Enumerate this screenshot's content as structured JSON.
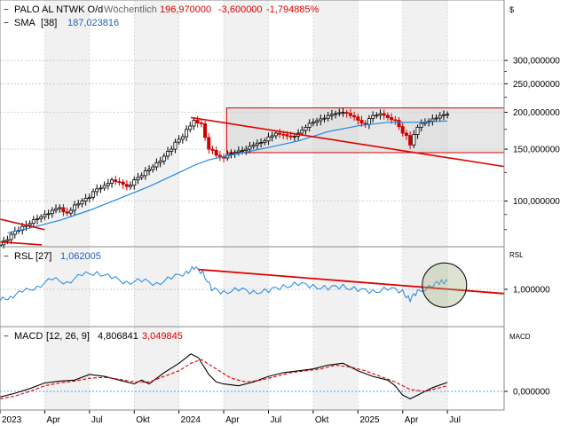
{
  "header": {
    "symbol": "PALO AL NTWK O/d",
    "interval": "Wöchentlich",
    "last": "196,970000",
    "change": "-3,600000",
    "change_pct": "-1,794885%",
    "currency_label": "$",
    "sma_label": "SMA",
    "sma_param": "[38]",
    "sma_value": "187,023816",
    "rsl_label": "RSL",
    "rsl_param": "[27]",
    "rsl_value": "1,062005",
    "rsl_axis_label": "RSL",
    "macd_label": "MACD",
    "macd_param": "[12, 26, 9]",
    "macd_value": "4,806841",
    "macd_signal_value": "3,049845",
    "macd_axis_label": "MACD"
  },
  "colors": {
    "up": "#000000",
    "down": "#d00000",
    "sma": "#1e88e5",
    "trendline": "#dd0000",
    "macd": "#000000",
    "signal": "#dd0000",
    "zero": "#1e88e5",
    "shade": "#d3d3d3",
    "stripe": "#f1f1f1",
    "header_red": "#dd0000",
    "header_blue": "#1e5fbf"
  },
  "chart_data": [
    {
      "type": "candlestick",
      "title": "PALO AL NTWK O/d",
      "y_scale": "log",
      "ylim": [
        70,
        380
      ],
      "y_ticks": [
        100,
        150,
        200,
        250,
        300
      ],
      "y_tick_labels": [
        "100,000000",
        "150,000000",
        "200,000000",
        "250,000000",
        "300,000000"
      ],
      "x_ticks": [
        "2023",
        "Apr",
        "Jul",
        "Okt",
        "2024",
        "Apr",
        "Jul",
        "Okt",
        "2025",
        "Apr",
        "Jul"
      ],
      "x_tick_months": [
        0,
        3,
        6,
        9,
        12,
        15,
        18,
        21,
        24,
        27,
        30
      ],
      "x_range_months": [
        0,
        33.8
      ],
      "last_close": 196.97,
      "closes": [
        [
          0,
          71
        ],
        [
          0.5,
          74
        ],
        [
          1,
          79
        ],
        [
          1.5,
          82
        ],
        [
          2,
          84
        ],
        [
          2.5,
          87
        ],
        [
          3,
          90
        ],
        [
          3.5,
          93
        ],
        [
          4,
          95
        ],
        [
          4.5,
          91
        ],
        [
          5,
          97
        ],
        [
          5.5,
          100
        ],
        [
          6,
          103
        ],
        [
          6.5,
          110
        ],
        [
          7,
          113
        ],
        [
          7.5,
          118
        ],
        [
          8,
          116
        ],
        [
          8.5,
          112
        ],
        [
          9,
          118
        ],
        [
          9.5,
          122
        ],
        [
          10,
          128
        ],
        [
          10.5,
          135
        ],
        [
          11,
          142
        ],
        [
          11.5,
          150
        ],
        [
          12,
          162
        ],
        [
          12.5,
          175
        ],
        [
          13,
          188
        ],
        [
          13.5,
          183
        ],
        [
          14,
          150
        ],
        [
          14.5,
          143
        ],
        [
          15,
          140
        ],
        [
          15.5,
          145
        ],
        [
          16,
          148
        ],
        [
          16.5,
          150
        ],
        [
          17,
          155
        ],
        [
          17.5,
          158
        ],
        [
          18,
          165
        ],
        [
          18.5,
          170
        ],
        [
          19,
          168
        ],
        [
          19.5,
          165
        ],
        [
          20,
          170
        ],
        [
          20.5,
          178
        ],
        [
          21,
          185
        ],
        [
          21.5,
          190
        ],
        [
          22,
          195
        ],
        [
          22.5,
          198
        ],
        [
          23,
          200
        ],
        [
          23.5,
          195
        ],
        [
          24,
          188
        ],
        [
          24.5,
          182
        ],
        [
          25,
          195
        ],
        [
          25.5,
          198
        ],
        [
          26,
          192
        ],
        [
          26.5,
          188
        ],
        [
          27,
          170
        ],
        [
          27.5,
          155
        ],
        [
          28,
          178
        ],
        [
          28.5,
          185
        ],
        [
          29,
          190
        ],
        [
          29.5,
          195
        ],
        [
          30,
          197
        ]
      ],
      "sma": [
        [
          0.5,
          78
        ],
        [
          2,
          81
        ],
        [
          4,
          86
        ],
        [
          6,
          93
        ],
        [
          8,
          102
        ],
        [
          10,
          112
        ],
        [
          12,
          125
        ],
        [
          13,
          132
        ],
        [
          14,
          138
        ],
        [
          16,
          145
        ],
        [
          18,
          152
        ],
        [
          20,
          160
        ],
        [
          22,
          172
        ],
        [
          24,
          180
        ],
        [
          26,
          185
        ],
        [
          28,
          185
        ],
        [
          30,
          187
        ]
      ],
      "sma_last": 187.023816,
      "trendlines": [
        {
          "from": [
            -0.5,
            88
          ],
          "to": [
            3,
            80
          ]
        },
        {
          "from": [
            -0.5,
            73
          ],
          "to": [
            2.8,
            71
          ]
        },
        {
          "from": [
            12.8,
            192
          ],
          "to": [
            33.8,
            131
          ]
        }
      ],
      "range_box": {
        "x_start": 15.2,
        "x_end": 33.8,
        "low": 146,
        "high": 207
      }
    },
    {
      "type": "line",
      "title": "RSL [27]",
      "ylim": [
        0.75,
        1.2
      ],
      "y_ticks": [
        1.0
      ],
      "y_tick_labels": [
        "1,000000"
      ],
      "series": [
        {
          "name": "RSL",
          "points": [
            [
              0,
              0.92
            ],
            [
              0.7,
              0.95
            ],
            [
              1.5,
              0.98
            ],
            [
              2.5,
              1.02
            ],
            [
              3.5,
              1.07
            ],
            [
              4.5,
              1.05
            ],
            [
              5.5,
              1.1
            ],
            [
              6.5,
              1.12
            ],
            [
              7.5,
              1.08
            ],
            [
              8.5,
              1.05
            ],
            [
              9.5,
              1.06
            ],
            [
              10.5,
              1.04
            ],
            [
              11.5,
              1.08
            ],
            [
              12.5,
              1.12
            ],
            [
              13,
              1.15
            ],
            [
              13.6,
              1.12
            ],
            [
              14.2,
              1.0
            ],
            [
              15,
              0.98
            ],
            [
              16,
              1.0
            ],
            [
              17,
              0.98
            ],
            [
              18,
              0.99
            ],
            [
              19,
              1.02
            ],
            [
              20,
              1.04
            ],
            [
              21,
              1.02
            ],
            [
              22,
              1.01
            ],
            [
              23,
              1.02
            ],
            [
              24,
              1.0
            ],
            [
              25,
              0.98
            ],
            [
              26,
              1.01
            ],
            [
              27,
              0.98
            ],
            [
              27.5,
              0.93
            ],
            [
              28,
              0.98
            ],
            [
              29,
              1.03
            ],
            [
              29.6,
              1.05
            ],
            [
              30,
              1.06
            ]
          ]
        }
      ],
      "last": 1.062005,
      "trendline": {
        "from": [
          13.3,
          1.14
        ],
        "to": [
          33.8,
          0.97
        ]
      },
      "highlight_circle": {
        "x": 29.8,
        "y": 1.03
      }
    },
    {
      "type": "line",
      "title": "MACD [12, 26, 9]",
      "ylim": [
        -9,
        27
      ],
      "y_ticks": [
        0
      ],
      "y_tick_labels": [
        "0,000000"
      ],
      "series": [
        {
          "name": "MACD",
          "points": [
            [
              0,
              -3
            ],
            [
              1,
              -1
            ],
            [
              2,
              1.5
            ],
            [
              3,
              4.5
            ],
            [
              4,
              5.5
            ],
            [
              5,
              6
            ],
            [
              6,
              9
            ],
            [
              7,
              8
            ],
            [
              8,
              6
            ],
            [
              9,
              4
            ],
            [
              9.5,
              6
            ],
            [
              10,
              4
            ],
            [
              11,
              10
            ],
            [
              12,
              15
            ],
            [
              12.8,
              20
            ],
            [
              13.3,
              18
            ],
            [
              14,
              9
            ],
            [
              14.5,
              5
            ],
            [
              15,
              4
            ],
            [
              16,
              3
            ],
            [
              17,
              5
            ],
            [
              18,
              8
            ],
            [
              19,
              10
            ],
            [
              20,
              11
            ],
            [
              21,
              12
            ],
            [
              22,
              14
            ],
            [
              23,
              15
            ],
            [
              24,
              11
            ],
            [
              25,
              8
            ],
            [
              26,
              6
            ],
            [
              26.5,
              3
            ],
            [
              27,
              -2
            ],
            [
              27.5,
              -4
            ],
            [
              28,
              -2
            ],
            [
              29,
              2
            ],
            [
              30,
              4.8
            ]
          ]
        },
        {
          "name": "Signal",
          "points": [
            [
              0,
              -4
            ],
            [
              1,
              -2.5
            ],
            [
              2,
              0
            ],
            [
              3,
              3
            ],
            [
              4,
              4.5
            ],
            [
              5,
              5.5
            ],
            [
              6,
              7
            ],
            [
              7,
              7.5
            ],
            [
              8,
              6.5
            ],
            [
              9,
              5
            ],
            [
              10,
              5
            ],
            [
              11,
              8
            ],
            [
              12,
              11
            ],
            [
              12.8,
              15
            ],
            [
              13.5,
              17
            ],
            [
              14.5,
              12
            ],
            [
              15.5,
              7
            ],
            [
              16.5,
              5
            ],
            [
              17.5,
              6
            ],
            [
              18.5,
              8
            ],
            [
              19.5,
              10
            ],
            [
              20.5,
              11
            ],
            [
              21.5,
              12
            ],
            [
              22.5,
              14
            ],
            [
              23.5,
              13
            ],
            [
              24.5,
              11
            ],
            [
              25.5,
              8
            ],
            [
              26.5,
              5
            ],
            [
              27.5,
              1
            ],
            [
              28.5,
              0
            ],
            [
              29.5,
              2
            ],
            [
              30,
              3
            ]
          ]
        }
      ],
      "macd_last": 4.806841,
      "signal_last": 3.049845
    }
  ]
}
